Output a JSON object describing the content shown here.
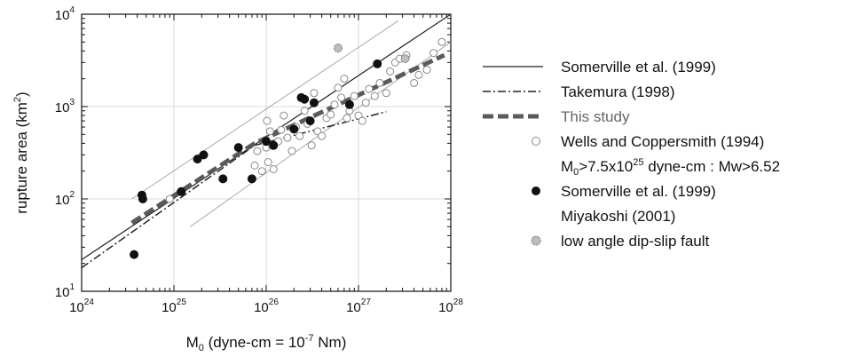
{
  "chart_data": {
    "type": "scatter",
    "log_x": true,
    "log_y": true,
    "xlim": [
      1e+24,
      1e+28
    ],
    "ylim": [
      10,
      10000
    ],
    "grid": true,
    "xlabel": {
      "base": "M",
      "sub": "0",
      "mid": " (dyne-cm = 10",
      "sup": "-7",
      "end": " Nm)"
    },
    "ylabel": {
      "base": "rupture area (km",
      "sup": "2",
      "end": ")"
    },
    "x_ticks": [
      {
        "value": 1e+24,
        "base": "10",
        "exp": "24"
      },
      {
        "value": 1e+25,
        "base": "10",
        "exp": "25"
      },
      {
        "value": 1e+26,
        "base": "10",
        "exp": "26"
      },
      {
        "value": 1e+27,
        "base": "10",
        "exp": "27"
      },
      {
        "value": 1e+28,
        "base": "10",
        "exp": "28"
      }
    ],
    "y_ticks": [
      {
        "value": 10,
        "base": "10",
        "exp": "1"
      },
      {
        "value": 100,
        "base": "10",
        "exp": "2"
      },
      {
        "value": 1000,
        "base": "10",
        "exp": "3"
      },
      {
        "value": 10000,
        "base": "10",
        "exp": "4"
      }
    ],
    "lines": [
      {
        "name": "Somerville et al. (1999)",
        "style": "solid",
        "color": "#222222",
        "x": [
          1e+24,
          1e+28
        ],
        "y": [
          22,
          10000
        ]
      },
      {
        "name": "Somerville et al. (1999) upper bound",
        "style": "thin-gray",
        "color": "#aaaaaa",
        "x": [
          3.5e+24,
          2.7e+27
        ],
        "y": [
          100,
          8500
        ]
      },
      {
        "name": "Somerville et al. (1999) lower bound",
        "style": "thin-gray",
        "color": "#aaaaaa",
        "x": [
          1.5e+25,
          1e+28
        ],
        "y": [
          50,
          5000
        ]
      },
      {
        "name": "Takemura (1998)",
        "style": "dashdot",
        "color": "#222222",
        "x": [
          1e+24,
          7.5e+25,
          2e+27
        ],
        "y": [
          18,
          380,
          880
        ]
      },
      {
        "name": "This study",
        "style": "thick-dashed",
        "color": "#555555",
        "x": [
          3.5e+24,
          7.5e+25,
          8.5e+27
        ],
        "y": [
          55,
          400,
          3600
        ]
      }
    ],
    "series": [
      {
        "name": "Wells and Coppersmith (1994)",
        "marker": "open-circle",
        "points": [
          [
            9e+24,
            100
          ],
          [
            7.5e+25,
            230
          ],
          [
            8e+25,
            330
          ],
          [
            9e+25,
            200
          ],
          [
            1e+26,
            360
          ],
          [
            1.02e+26,
            700
          ],
          [
            1.05e+26,
            250
          ],
          [
            1.1e+26,
            540
          ],
          [
            1.15e+26,
            380
          ],
          [
            1.2e+26,
            210
          ],
          [
            1.35e+26,
            420
          ],
          [
            1.45e+26,
            560
          ],
          [
            1.55e+26,
            800
          ],
          [
            1.7e+26,
            460
          ],
          [
            1.9e+26,
            330
          ],
          [
            2.1e+26,
            600
          ],
          [
            2.3e+26,
            480
          ],
          [
            2.6e+26,
            900
          ],
          [
            2.8e+26,
            650
          ],
          [
            3.1e+26,
            380
          ],
          [
            3.3e+26,
            1400
          ],
          [
            3.6e+26,
            540
          ],
          [
            4e+26,
            480
          ],
          [
            4.5e+26,
            750
          ],
          [
            5e+26,
            820
          ],
          [
            5.5e+26,
            1050
          ],
          [
            6e+26,
            1600
          ],
          [
            6.5e+26,
            1250
          ],
          [
            7e+26,
            2000
          ],
          [
            7.5e+26,
            750
          ],
          [
            8e+26,
            900
          ],
          [
            9e+26,
            1300
          ],
          [
            1e+27,
            800
          ],
          [
            1.1e+27,
            700
          ],
          [
            1.2e+27,
            1100
          ],
          [
            1.3e+27,
            1550
          ],
          [
            1.5e+27,
            1300
          ],
          [
            1.7e+27,
            1800
          ],
          [
            2e+27,
            1400
          ],
          [
            2.2e+27,
            2400
          ],
          [
            2.5e+27,
            3000
          ],
          [
            2.8e+27,
            3300
          ],
          [
            3.3e+27,
            3600
          ],
          [
            4e+27,
            1800
          ],
          [
            4.5e+27,
            2200
          ],
          [
            5.5e+27,
            2500
          ],
          [
            6.5e+27,
            3800
          ],
          [
            8e+27,
            5000
          ]
        ]
      },
      {
        "name": "Somerville et al. (1999)",
        "marker": "filled-circle",
        "points": [
          [
            3.7e+24,
            25
          ],
          [
            4.5e+24,
            110
          ],
          [
            4.6e+24,
            100
          ],
          [
            1.2e+25,
            120
          ],
          [
            1.8e+25,
            270
          ],
          [
            2.1e+25,
            300
          ],
          [
            3.4e+25,
            165
          ],
          [
            5e+25,
            360
          ],
          [
            7e+25,
            165
          ],
          [
            1e+26,
            420
          ],
          [
            1.2e+26,
            380
          ],
          [
            2e+26,
            570
          ],
          [
            2.4e+26,
            1250
          ],
          [
            2.6e+26,
            1200
          ],
          [
            3e+26,
            700
          ],
          [
            3.3e+26,
            1100
          ],
          [
            8e+26,
            1050
          ],
          [
            1.6e+27,
            2900
          ]
        ]
      },
      {
        "name": "Miyakoshi (2001)",
        "marker": "filled-circle",
        "points": []
      },
      {
        "name": "low angle dip-slip fault",
        "marker": "shaded-circle",
        "points": [
          [
            6e+26,
            4300
          ],
          [
            3.2e+27,
            3300
          ]
        ]
      }
    ]
  },
  "legend": [
    {
      "kind": "solid",
      "label": "Somerville et al. (1999)"
    },
    {
      "kind": "dashdot",
      "label": "Takemura (1998)"
    },
    {
      "kind": "thick-dashed",
      "label": "This study",
      "gray": true
    },
    {
      "kind": "open-circle",
      "label": "Wells and Coppersmith (1994)"
    },
    {
      "kind": "none",
      "label_base": "M",
      "label_sub": "0",
      "label_mid": ">7.5x10",
      "label_sup": "25",
      "label_end": " dyne-cm : Mw>6.52"
    },
    {
      "kind": "filled-circle",
      "label": "Somerville et al. (1999)"
    },
    {
      "kind": "none",
      "label": "Miyakoshi (2001)"
    },
    {
      "kind": "shaded-circle",
      "label": "low angle dip-slip fault"
    }
  ]
}
